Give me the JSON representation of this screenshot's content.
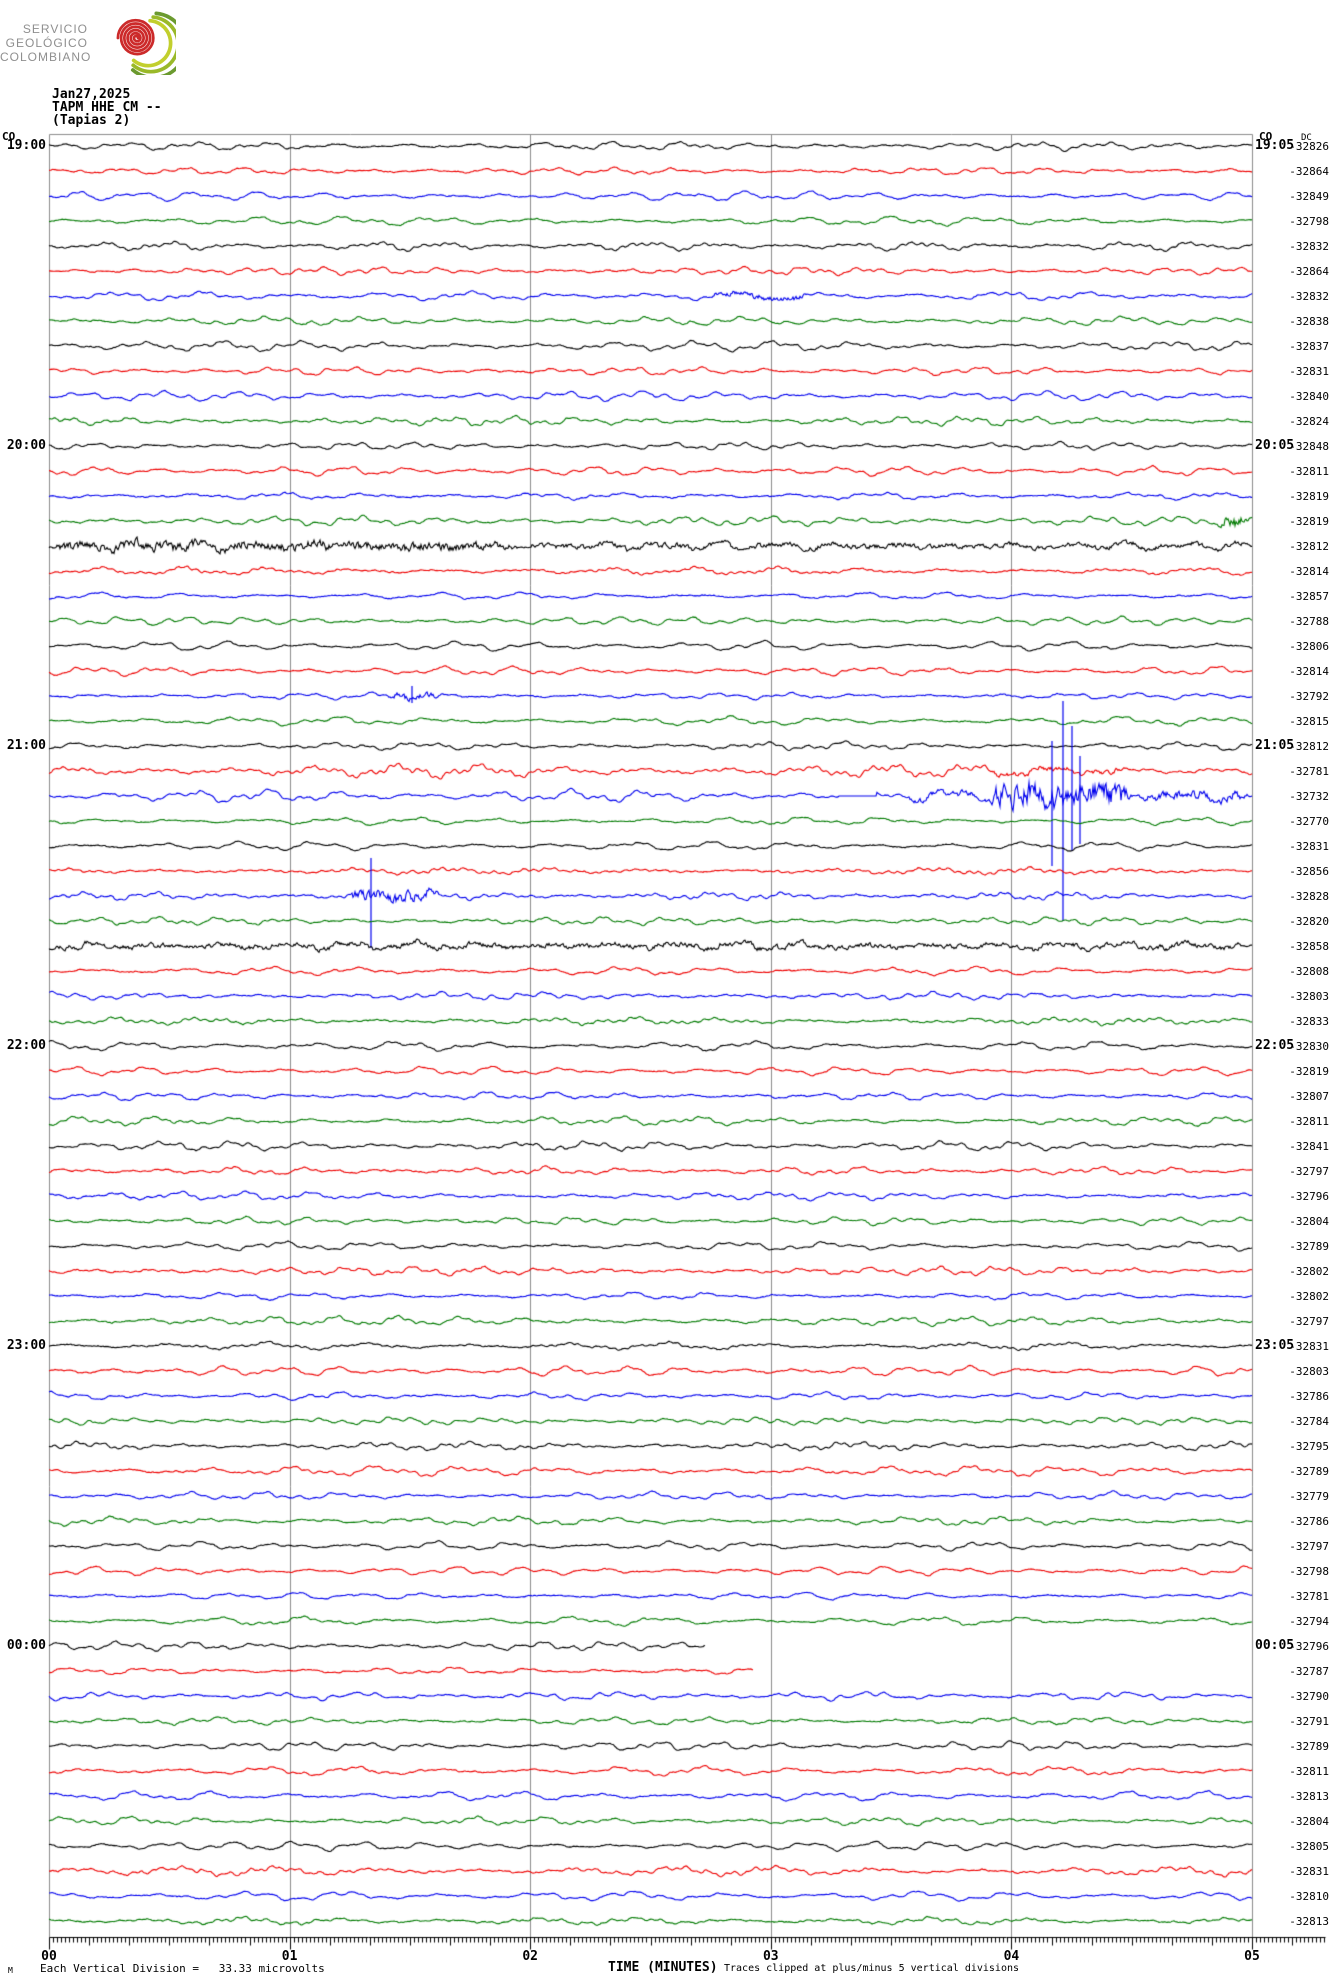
{
  "logo": {
    "line1": "SERVICIO",
    "line2": "GEOLÓGICO",
    "line3": "COLOMBIANO",
    "spiral_colors": [
      "#6b9a2f",
      "#9ab929",
      "#c2cf2d",
      "#cc2a2a"
    ]
  },
  "header": {
    "date": "Jan27,2025",
    "station": "TAPM HHE CM --",
    "station_name": "(Tapias 2)"
  },
  "plot": {
    "network_left": "CO",
    "network_right": "CO",
    "dc_header": "DC",
    "left_hour_labels": [
      {
        "text": "19:00",
        "row": 1
      },
      {
        "text": "20:00",
        "row": 13
      },
      {
        "text": "21:00",
        "row": 25
      },
      {
        "text": "22:00",
        "row": 37
      },
      {
        "text": "23:00",
        "row": 49
      },
      {
        "text": "00:00",
        "row": 61
      }
    ],
    "right_hour_labels": [
      {
        "text": "19:05",
        "row": 1
      },
      {
        "text": "20:05",
        "row": 13
      },
      {
        "text": "21:05",
        "row": 25
      },
      {
        "text": "22:05",
        "row": 37
      },
      {
        "text": "23:05",
        "row": 49
      },
      {
        "text": "00:05",
        "row": 61
      }
    ]
  },
  "footer": {
    "sub_glyph": "M",
    "division_note": "Each Vertical Division =   33.33 microvolts",
    "axis_title": "TIME (MINUTES)",
    "clip_note": "Traces clipped at plus/minus 5 vertical divisions",
    "minute_labels": [
      "00",
      "01",
      "02",
      "03",
      "04",
      "05"
    ]
  },
  "chart_data": {
    "type": "line",
    "subtype": "helicorder_seismogram",
    "title": "TAPM HHE CM -- (Tapias 2) Jan27,2025",
    "xlabel": "TIME (MINUTES)",
    "x_range_minutes": [
      0,
      5
    ],
    "minutes_per_row": 5,
    "rows_per_hour": 12,
    "row_count": 72,
    "start_time": "19:00",
    "end_time": "00:55",
    "vertical_division_microvolts": 33.33,
    "clip_divisions": 5,
    "grid_on": true,
    "grid_color": "#8c8c8c",
    "trace_color_cycle": [
      "#000000",
      "#ee0000",
      "#0000ee",
      "#007a00"
    ],
    "dc_offsets": [
      -32826,
      -32864,
      -32849,
      -32798,
      -32832,
      -32864,
      -32832,
      -32838,
      -32837,
      -32831,
      -32840,
      -32824,
      -32848,
      -32811,
      -32819,
      -32819,
      -32812,
      -32814,
      -32857,
      -32788,
      -32806,
      -32814,
      -32792,
      -32815,
      -32812,
      -32781,
      -32732,
      -32770,
      -32831,
      -32856,
      -32828,
      -32820,
      -32858,
      -32808,
      -32803,
      -32833,
      -32830,
      -32819,
      -32807,
      -32811,
      -32841,
      -32797,
      -32796,
      -32804,
      -32789,
      -32802,
      -32802,
      -32797,
      -32831,
      -32803,
      -32786,
      -32784,
      -32795,
      -32789,
      -32779,
      -32786,
      -32797,
      -32798,
      -32781,
      -32794,
      -32796,
      -32787,
      -32790,
      -32791,
      -32789,
      -32811,
      -32813,
      -32804,
      -32805,
      -32831,
      -32810,
      -32813
    ],
    "events": [
      {
        "row": 7,
        "type": "burst",
        "x0": 2.73,
        "x1": 3.17,
        "amp": 5
      },
      {
        "row": 16,
        "type": "burst",
        "x0": 4.84,
        "x1": 5.0,
        "amp": 12
      },
      {
        "row": 17,
        "type": "burst",
        "x0": 0.0,
        "x1": 1.96,
        "amp": 9
      },
      {
        "row": 17,
        "type": "burst",
        "x0": 1.96,
        "x1": 5.0,
        "amp": 4.5
      },
      {
        "row": 23,
        "type": "burst",
        "x0": 1.39,
        "x1": 1.65,
        "amp": 6
      },
      {
        "row": 23,
        "type": "spike",
        "x": 1.51,
        "up": 10,
        "down": 7
      },
      {
        "row": 26,
        "type": "slow",
        "amp": 1.8
      },
      {
        "row": 26,
        "type": "burst",
        "x0": 3.89,
        "x1": 4.49,
        "amp": 4
      },
      {
        "row": 27,
        "type": "slow",
        "amp": 1.7
      },
      {
        "row": 27,
        "type": "flat",
        "x0": 3.28,
        "x1": 3.44
      },
      {
        "row": 27,
        "type": "burst",
        "x0": 3.54,
        "x1": 3.89,
        "amp": 5
      },
      {
        "row": 27,
        "type": "burst",
        "x0": 3.89,
        "x1": 4.51,
        "amp": 22
      },
      {
        "row": 27,
        "type": "burst",
        "x0": 4.51,
        "x1": 5.0,
        "amp": 8
      },
      {
        "row": 27,
        "type": "spike",
        "x": 4.17,
        "up": 55,
        "down": 70
      },
      {
        "row": 27,
        "type": "spike",
        "x": 4.215,
        "up": 95,
        "down": 125
      },
      {
        "row": 27,
        "type": "spike",
        "x": 4.25,
        "up": 70,
        "down": 55
      },
      {
        "row": 27,
        "type": "spike",
        "x": 4.285,
        "up": 40,
        "down": 48
      },
      {
        "row": 31,
        "type": "burst",
        "x0": 1.22,
        "x1": 1.63,
        "amp": 10
      },
      {
        "row": 31,
        "type": "spike",
        "x": 1.34,
        "up": 38,
        "down": 52
      },
      {
        "row": 33,
        "type": "burst",
        "x0": 0.0,
        "x1": 5.0,
        "amp": 4.5
      },
      {
        "row": 61,
        "type": "data_end",
        "x": 2.73
      },
      {
        "row": 62,
        "type": "data_end",
        "x": 2.93
      }
    ]
  }
}
